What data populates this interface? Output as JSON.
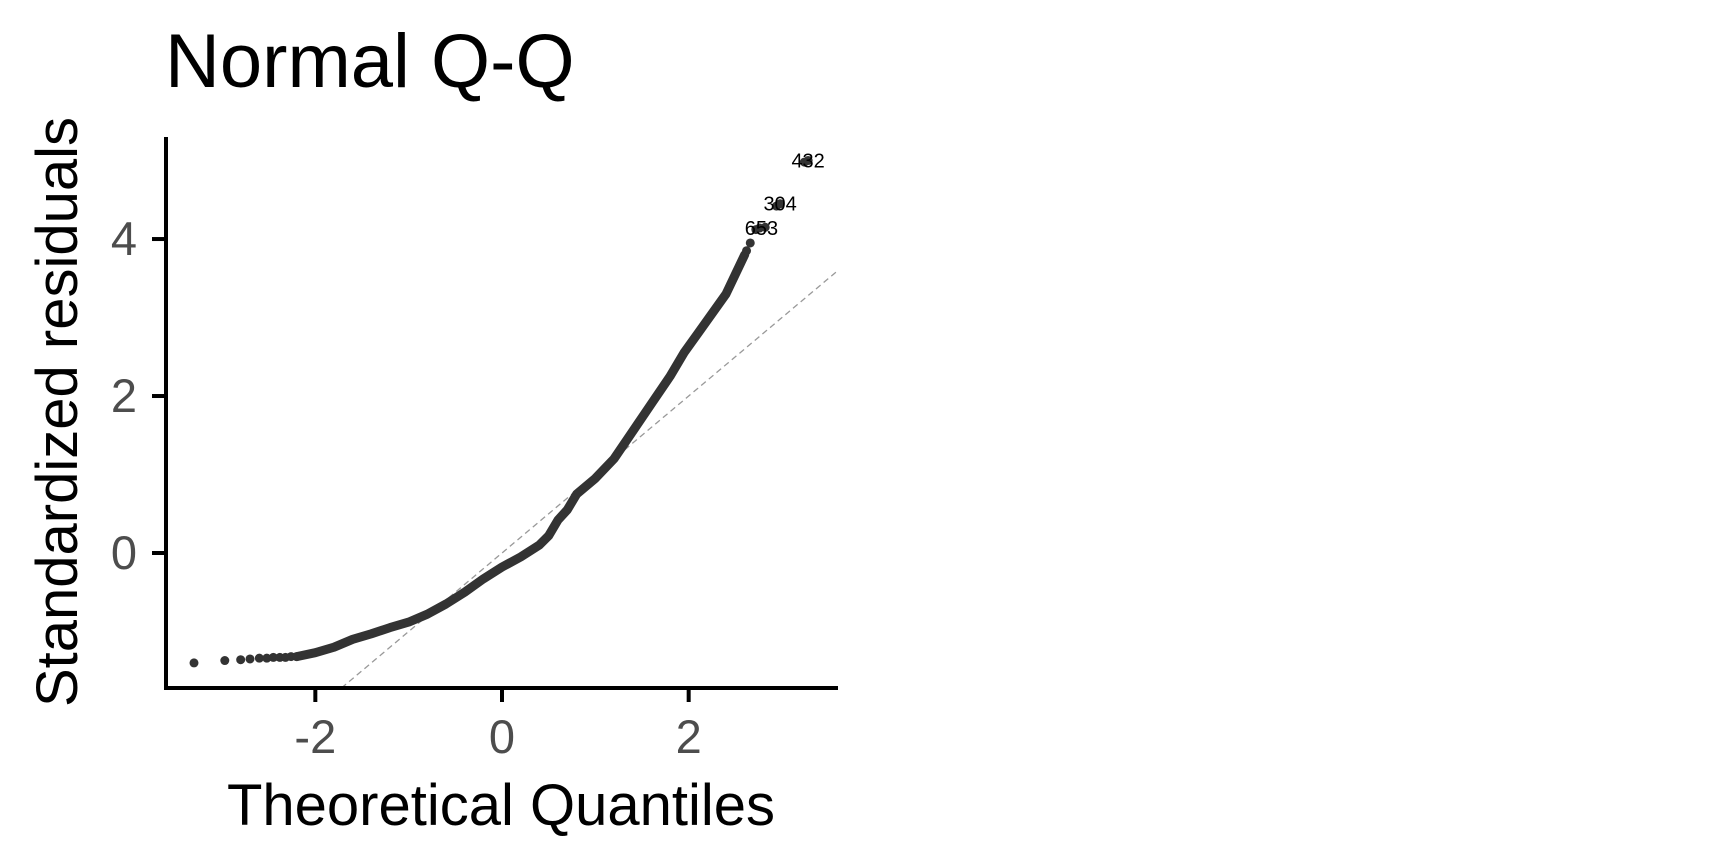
{
  "chart_data": {
    "type": "scatter",
    "title": "Normal Q-Q",
    "xlabel": "Theoretical Quantiles",
    "ylabel": "Standardized residuals",
    "xlim": [
      -3.6,
      3.6
    ],
    "ylim": [
      -1.72,
      5.3
    ],
    "x_ticks": [
      -2,
      0,
      2
    ],
    "x_tick_labels": [
      "-2",
      "0",
      "2"
    ],
    "y_ticks": [
      0,
      2,
      4
    ],
    "y_tick_labels": [
      "0",
      "2",
      "4"
    ],
    "grid": false,
    "legend": "none",
    "point_color": "#333333",
    "reference_line": {
      "style": "dashed",
      "color": "#999999",
      "slope": 1.0,
      "intercept": 0.0
    },
    "curve_points": [
      [
        -2.2,
        -1.32
      ],
      [
        -2.0,
        -1.27
      ],
      [
        -1.8,
        -1.2
      ],
      [
        -1.6,
        -1.1
      ],
      [
        -1.4,
        -1.03
      ],
      [
        -1.2,
        -0.95
      ],
      [
        -1.0,
        -0.88
      ],
      [
        -0.8,
        -0.78
      ],
      [
        -0.6,
        -0.65
      ],
      [
        -0.4,
        -0.5
      ],
      [
        -0.2,
        -0.33
      ],
      [
        0.0,
        -0.18
      ],
      [
        0.2,
        -0.05
      ],
      [
        0.4,
        0.1
      ],
      [
        0.5,
        0.22
      ],
      [
        0.6,
        0.42
      ],
      [
        0.7,
        0.55
      ],
      [
        0.8,
        0.75
      ],
      [
        1.0,
        0.95
      ],
      [
        1.2,
        1.2
      ],
      [
        1.4,
        1.55
      ],
      [
        1.6,
        1.9
      ],
      [
        1.8,
        2.25
      ],
      [
        1.95,
        2.55
      ],
      [
        2.1,
        2.8
      ],
      [
        2.25,
        3.05
      ],
      [
        2.4,
        3.3
      ],
      [
        2.5,
        3.55
      ],
      [
        2.6,
        3.8
      ]
    ],
    "points": [
      [
        -3.3,
        -1.4
      ],
      [
        -2.97,
        -1.37
      ],
      [
        -2.8,
        -1.36
      ],
      [
        -2.7,
        -1.35
      ],
      [
        -2.6,
        -1.34
      ],
      [
        -2.52,
        -1.34
      ],
      [
        -2.45,
        -1.33
      ],
      [
        -2.38,
        -1.33
      ],
      [
        -2.32,
        -1.33
      ],
      [
        -2.26,
        -1.32
      ],
      [
        -2.2,
        -1.32
      ],
      [
        2.62,
        3.85
      ],
      [
        2.66,
        3.95
      ],
      [
        2.72,
        4.12
      ],
      [
        2.76,
        4.14
      ],
      [
        2.82,
        4.15
      ],
      [
        2.94,
        4.42
      ],
      [
        2.98,
        4.45
      ],
      [
        3.24,
        4.98
      ],
      [
        3.28,
        5.0
      ]
    ],
    "labeled_points": [
      {
        "label": "432",
        "x": 3.28,
        "y": 5.0
      },
      {
        "label": "304",
        "x": 2.98,
        "y": 4.45
      },
      {
        "label": "653",
        "x": 2.78,
        "y": 4.14
      }
    ]
  }
}
